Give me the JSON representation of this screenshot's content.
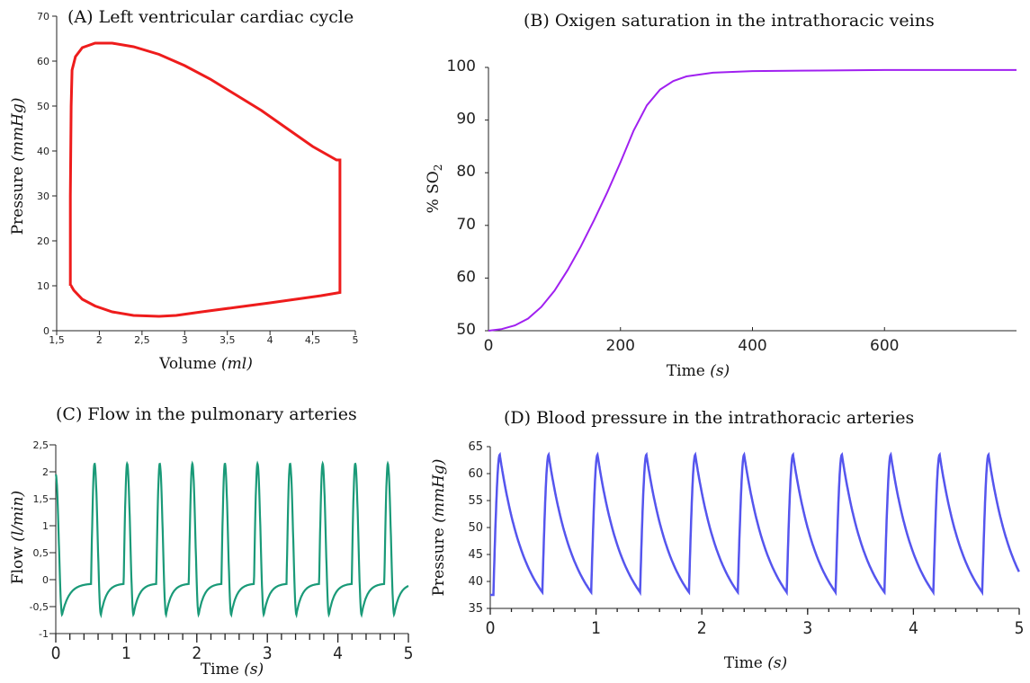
{
  "chart_data": [
    {
      "id": "A",
      "type": "line",
      "title": "(A) Left ventricular cardiac cycle",
      "xlabel": "Volume",
      "xlabel_unit": "(ml)",
      "ylabel": "Pressure",
      "ylabel_unit": "(mmHg)",
      "xlim": [
        1.5,
        5
      ],
      "ylim": [
        0,
        70
      ],
      "xticks": [
        "1,5",
        "2",
        "2,5",
        "3",
        "3,5",
        "4",
        "4,5",
        "5"
      ],
      "yticks": [
        "0",
        "10",
        "20",
        "30",
        "40",
        "50",
        "60",
        "70"
      ],
      "line_color": "#ee1c1c",
      "series": [
        {
          "x": [
            1.66,
            1.66,
            1.67,
            1.68,
            1.72,
            1.8,
            1.95,
            2.15,
            2.4,
            2.7,
            3.0,
            3.3,
            3.6,
            3.9,
            4.2,
            4.5,
            4.78,
            4.82,
            4.82,
            4.82,
            4.6,
            4.3,
            4.0,
            3.6,
            3.2,
            2.9,
            2.7,
            2.4,
            2.15,
            1.95,
            1.8,
            1.7,
            1.67,
            1.66
          ],
          "y": [
            10,
            30,
            50,
            58,
            61,
            63,
            64,
            64,
            63.2,
            61.5,
            59,
            56,
            52.5,
            49,
            45,
            41,
            38,
            38,
            20,
            8.5,
            7.8,
            7.0,
            6.2,
            5.2,
            4.2,
            3.4,
            3.2,
            3.4,
            4.2,
            5.5,
            7,
            9,
            10,
            10
          ]
        }
      ]
    },
    {
      "id": "B",
      "type": "line",
      "title": "(B) Oxigen saturation in the intrathoracic veins",
      "xlabel": "Time",
      "xlabel_unit": "(s)",
      "ylabel": "% SO",
      "ylabel_sub": "2",
      "xlim": [
        0,
        800
      ],
      "ylim": [
        50,
        100
      ],
      "xticks": [
        "0",
        "200",
        "400",
        "600"
      ],
      "yticks": [
        "50",
        "60",
        "70",
        "80",
        "90",
        "100"
      ],
      "line_color": "#a020f0",
      "series": [
        {
          "x": [
            0,
            20,
            40,
            60,
            80,
            100,
            120,
            140,
            160,
            180,
            200,
            220,
            240,
            260,
            280,
            300,
            340,
            400,
            500,
            600,
            700,
            800
          ],
          "y": [
            50,
            50.3,
            51,
            52.3,
            54.5,
            57.6,
            61.5,
            66,
            71,
            76.3,
            82,
            88,
            92.8,
            95.8,
            97.4,
            98.3,
            99.0,
            99.3,
            99.4,
            99.5,
            99.5,
            99.5
          ]
        }
      ]
    },
    {
      "id": "C",
      "type": "line",
      "title": "(C) Flow in the pulmonary arteries",
      "xlabel": "Time",
      "xlabel_unit": "(s)",
      "ylabel": "Flow",
      "ylabel_unit": "(l/min)",
      "xlim": [
        0,
        5
      ],
      "ylim": [
        -1,
        2.5
      ],
      "xticks": [
        "0",
        "1",
        "2",
        "3",
        "4",
        "5"
      ],
      "yticks": [
        "-1",
        "-0,5",
        "0",
        "0,5",
        "1",
        "1,5",
        "2",
        "2,5"
      ],
      "line_color": "#1a9a78",
      "period_s": 0.462,
      "first_beat_s": 0.5,
      "peak_flow": 2.15,
      "trough_flow": -0.65,
      "diastolic_flow": -0.08,
      "initial_flow": 1.95,
      "final_flow": -0.1
    },
    {
      "id": "D",
      "type": "line",
      "title": "(D) Blood pressure in the intrathoracic arteries",
      "xlabel": "Time",
      "xlabel_unit": "(s)",
      "ylabel": "Pressure",
      "ylabel_unit": "(mmHg)",
      "xlim": [
        0,
        5
      ],
      "ylim": [
        35,
        65
      ],
      "xticks": [
        "0",
        "1",
        "2",
        "3",
        "4",
        "5"
      ],
      "yticks": [
        "35",
        "40",
        "45",
        "50",
        "55",
        "60",
        "65"
      ],
      "line_color": "#5555ee",
      "period_s": 0.462,
      "first_peak_s": 0.09,
      "peak_pressure": 63.5,
      "trough_pressure": 38,
      "initial_pressure": 37.5,
      "final_pressure": 41.5
    }
  ]
}
